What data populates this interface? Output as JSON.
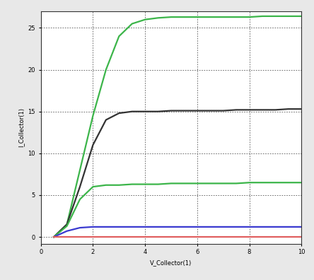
{
  "chart_data": {
    "type": "line",
    "x_label": "V_Collector(1)",
    "y_label": "I_Collector(1)",
    "x": [
      0.5,
      1,
      1.5,
      2,
      2.5,
      3,
      3.5,
      4,
      4.5,
      5,
      5.5,
      6,
      6.5,
      7,
      7.5,
      8,
      8.5,
      9,
      9.5,
      10
    ],
    "series": [
      {
        "color": "#3cb54a",
        "values": [
          0,
          1.5,
          8,
          14.5,
          20,
          24,
          25.5,
          26,
          26.2,
          26.3,
          26.3,
          26.3,
          26.3,
          26.3,
          26.3,
          26.3,
          26.4,
          26.4,
          26.4,
          26.4
        ]
      },
      {
        "color": "#333333",
        "values": [
          0,
          1.5,
          6,
          11,
          14,
          14.8,
          15,
          15,
          15,
          15.1,
          15.1,
          15.1,
          15.1,
          15.1,
          15.2,
          15.2,
          15.2,
          15.2,
          15.3,
          15.3
        ]
      },
      {
        "color": "#3cb54a",
        "values": [
          0,
          1.3,
          4.5,
          6,
          6.2,
          6.2,
          6.3,
          6.3,
          6.3,
          6.4,
          6.4,
          6.4,
          6.4,
          6.4,
          6.4,
          6.5,
          6.5,
          6.5,
          6.5,
          6.5
        ]
      },
      {
        "color": "#3a3ad0",
        "values": [
          0,
          0.7,
          1.1,
          1.2,
          1.2,
          1.2,
          1.2,
          1.2,
          1.2,
          1.2,
          1.2,
          1.2,
          1.2,
          1.2,
          1.2,
          1.2,
          1.2,
          1.2,
          1.2,
          1.2
        ]
      },
      {
        "color": "#e06060",
        "values": [
          0,
          0,
          0,
          0,
          0,
          0,
          0,
          0,
          0,
          0,
          0,
          0,
          0,
          0,
          0,
          0,
          0,
          0,
          0,
          0
        ]
      }
    ],
    "xlim": [
      0,
      10
    ],
    "ylim": [
      -0.8,
      27
    ],
    "xticks": [
      0,
      2,
      4,
      6,
      8,
      10
    ],
    "yticks": [
      0,
      5,
      10,
      15,
      20,
      25
    ],
    "grid": true
  }
}
